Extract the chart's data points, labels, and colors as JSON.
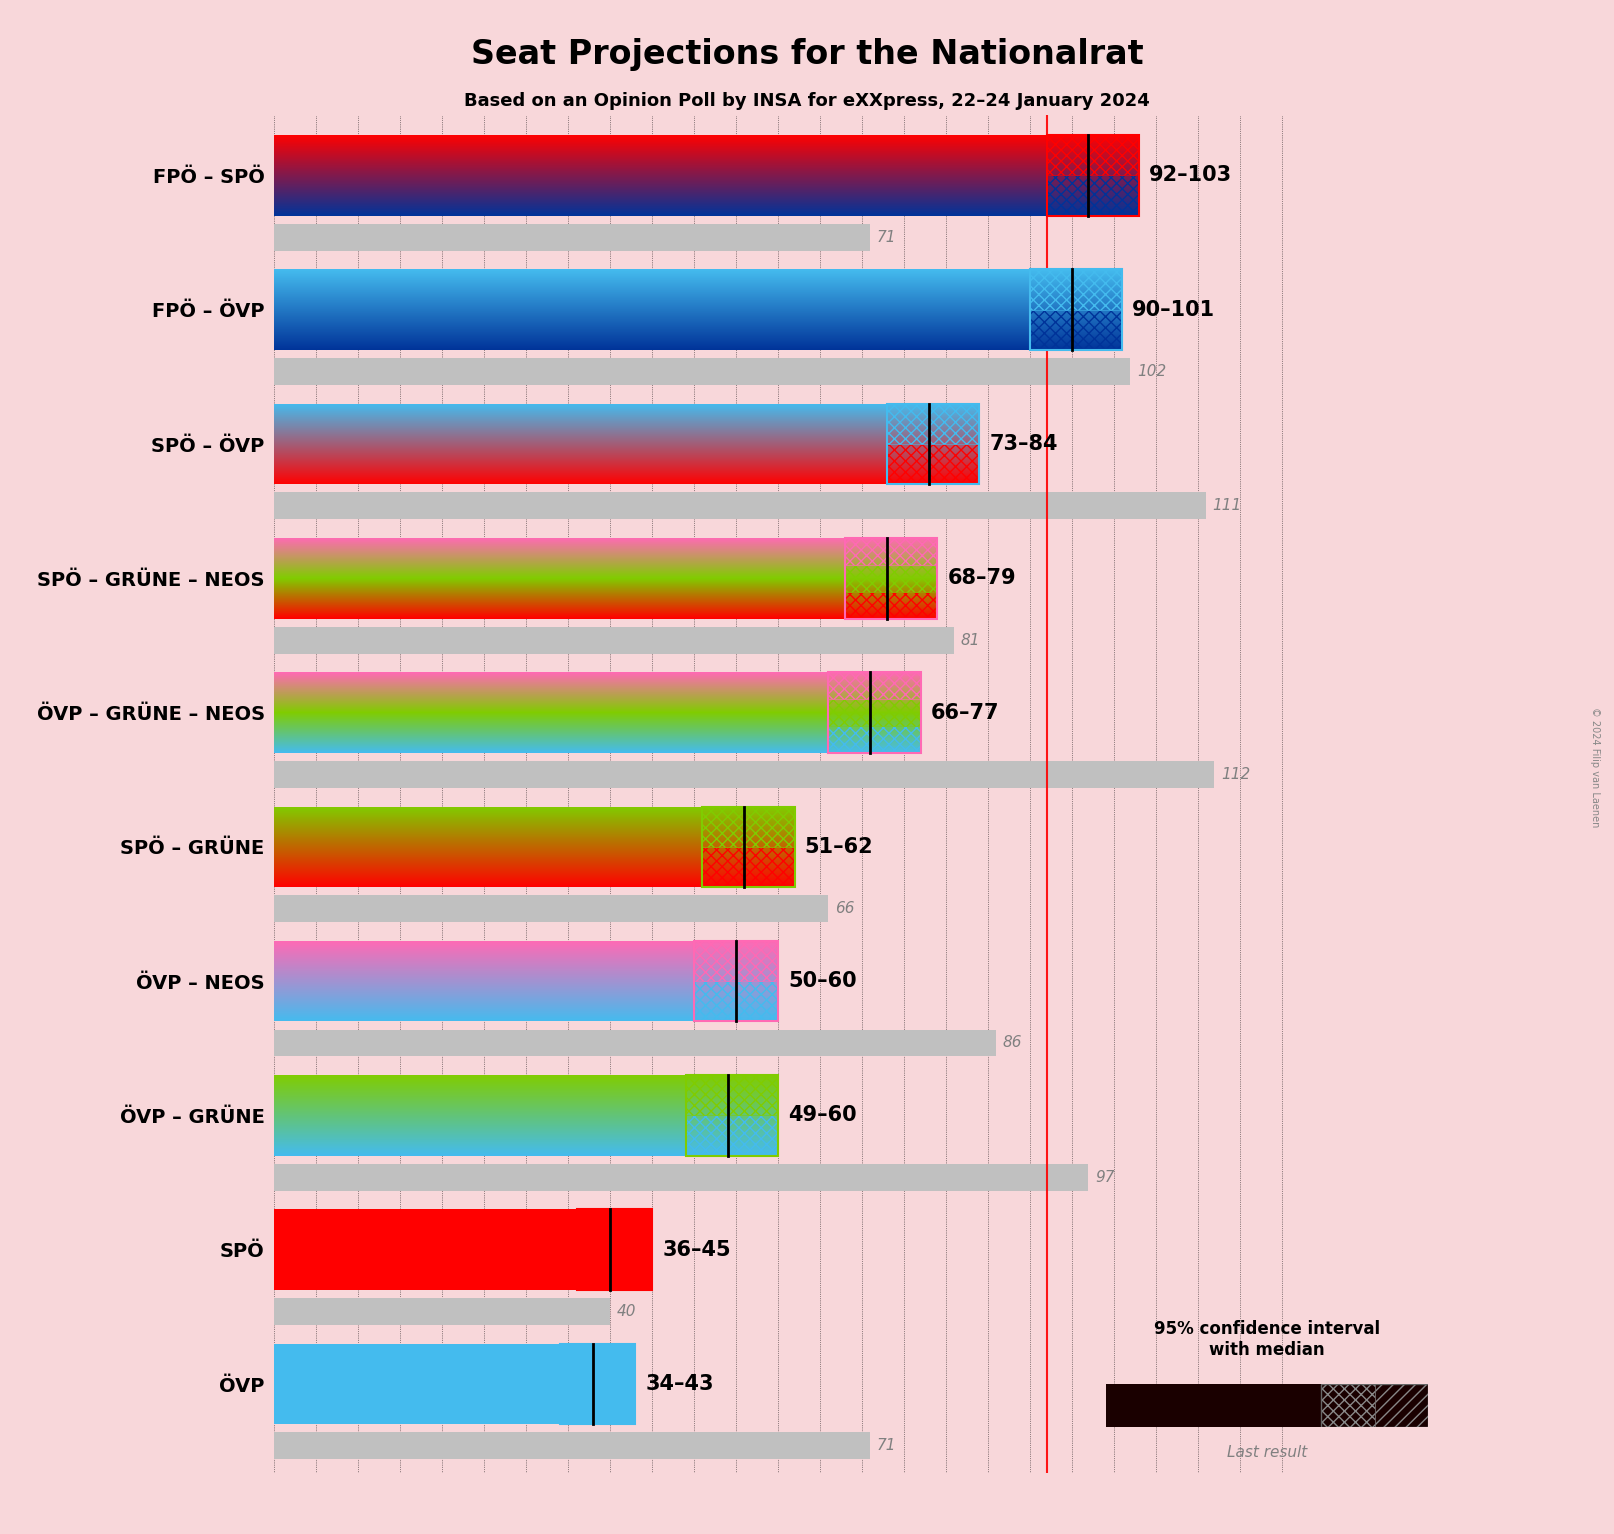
{
  "title": "Seat Projections for the Nationalrat",
  "subtitle": "Based on an Opinion Poll by INSA for eXXpress, 22–24 January 2024",
  "background_color": "#f8d7da",
  "coalitions": [
    {
      "name": "FPÖ – SPÖ",
      "range_low": 92,
      "range_high": 103,
      "median": 97,
      "last_result": 71,
      "colors": [
        "#003399",
        "#FF0000"
      ],
      "hatch_colors": [
        "#003399",
        "#FF0000"
      ],
      "underline": false
    },
    {
      "name": "FPÖ – ÖVP",
      "range_low": 90,
      "range_high": 101,
      "median": 95,
      "last_result": 102,
      "colors": [
        "#003399",
        "#44BBEE"
      ],
      "hatch_colors": [
        "#003399",
        "#44BBEE"
      ],
      "underline": false
    },
    {
      "name": "SPÖ – ÖVP",
      "range_low": 73,
      "range_high": 84,
      "median": 78,
      "last_result": 111,
      "colors": [
        "#FF0000",
        "#44BBEE"
      ],
      "hatch_colors": [
        "#FF0000",
        "#44BBEE"
      ],
      "underline": false
    },
    {
      "name": "SPÖ – GRÜNE – NEOS",
      "range_low": 68,
      "range_high": 79,
      "median": 73,
      "last_result": 81,
      "colors": [
        "#FF0000",
        "#80CC00",
        "#FF69B4"
      ],
      "hatch_colors": [
        "#FF0000",
        "#80CC00",
        "#FF69B4"
      ],
      "underline": false
    },
    {
      "name": "ÖVP – GRÜNE – NEOS",
      "range_low": 66,
      "range_high": 77,
      "median": 71,
      "last_result": 112,
      "colors": [
        "#44BBEE",
        "#80CC00",
        "#FF69B4"
      ],
      "hatch_colors": [
        "#44BBEE",
        "#80CC00",
        "#FF69B4"
      ],
      "underline": false
    },
    {
      "name": "SPÖ – GRÜNE",
      "range_low": 51,
      "range_high": 62,
      "median": 56,
      "last_result": 66,
      "colors": [
        "#FF0000",
        "#80CC00"
      ],
      "hatch_colors": [
        "#FF0000",
        "#80CC00"
      ],
      "underline": false
    },
    {
      "name": "ÖVP – NEOS",
      "range_low": 50,
      "range_high": 60,
      "median": 55,
      "last_result": 86,
      "colors": [
        "#44BBEE",
        "#FF69B4"
      ],
      "hatch_colors": [
        "#44BBEE",
        "#FF69B4"
      ],
      "underline": false
    },
    {
      "name": "ÖVP – GRÜNE",
      "range_low": 49,
      "range_high": 60,
      "median": 54,
      "last_result": 97,
      "colors": [
        "#44BBEE",
        "#80CC00"
      ],
      "hatch_colors": [
        "#44BBEE",
        "#80CC00"
      ],
      "underline": true
    },
    {
      "name": "SPÖ",
      "range_low": 36,
      "range_high": 45,
      "median": 40,
      "last_result": 40,
      "colors": [
        "#FF0000"
      ],
      "hatch_colors": [
        "#FF0000"
      ],
      "underline": false
    },
    {
      "name": "ÖVP",
      "range_low": 34,
      "range_high": 43,
      "median": 38,
      "last_result": 71,
      "colors": [
        "#44BBEE"
      ],
      "hatch_colors": [
        "#44BBEE"
      ],
      "underline": false
    }
  ],
  "majority": 92,
  "x_max": 125,
  "x_min": 0,
  "grid_step": 5,
  "copyright": "© 2024 Filip van Laenen"
}
